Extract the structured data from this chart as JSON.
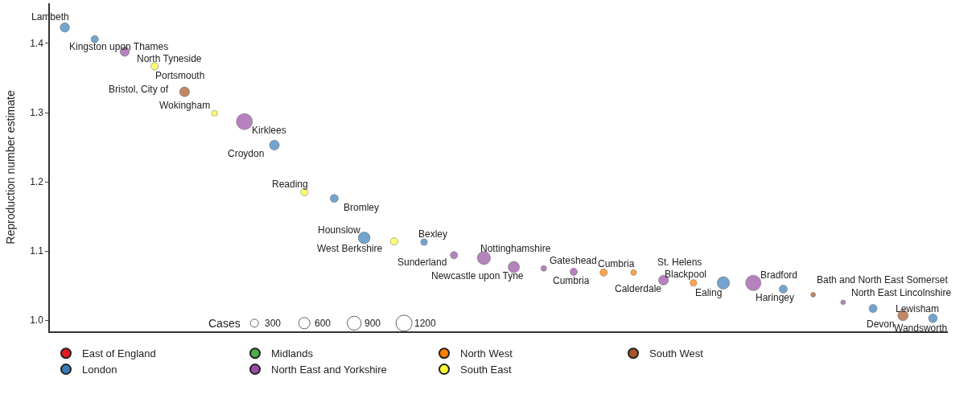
{
  "chart_data": {
    "type": "bubble",
    "ylabel": "Reproduction number estimate",
    "categories": [
      null,
      null,
      null,
      null,
      null,
      null,
      null,
      null,
      null,
      null,
      null,
      null,
      null,
      null,
      null,
      null,
      null,
      null,
      null,
      null,
      null,
      null,
      null,
      null,
      null,
      null,
      null,
      null,
      null,
      null
    ],
    "series": [
      {
        "name": "East of England",
        "color": "#e41a1c",
        "values": [
          null,
          null,
          null,
          null,
          null,
          null,
          null,
          null,
          null,
          null,
          null,
          null,
          null,
          null,
          null,
          null,
          null,
          null,
          null,
          null,
          null,
          null,
          null,
          null,
          null,
          null,
          null,
          null,
          null,
          null
        ],
        "sizes": [
          null,
          null,
          null,
          null,
          null,
          null,
          null,
          null,
          null,
          null,
          null,
          null,
          null,
          null,
          null,
          null,
          null,
          null,
          null,
          null,
          null,
          null,
          null,
          null,
          null,
          null,
          null,
          null,
          null,
          null
        ]
      },
      {
        "name": "Midlands",
        "color": "#4daf4a",
        "values": [
          null,
          null,
          null,
          null,
          null,
          null,
          null,
          null,
          null,
          null,
          null,
          null,
          null,
          null,
          null,
          null,
          null,
          null,
          null,
          null,
          null,
          null,
          null,
          null,
          null,
          null,
          null,
          null,
          null,
          null
        ],
        "sizes": [
          null,
          null,
          null,
          null,
          null,
          null,
          null,
          null,
          null,
          null,
          null,
          null,
          null,
          null,
          null,
          null,
          null,
          null,
          null,
          null,
          null,
          null,
          null,
          null,
          null,
          null,
          null,
          null,
          null,
          null
        ]
      },
      {
        "name": "North West",
        "color": "#ff7f00",
        "values": [
          null,
          null,
          null,
          null,
          null,
          null,
          null,
          null,
          null,
          null,
          null,
          null,
          null,
          null,
          null,
          null,
          null,
          null,
          1.069,
          1.069,
          null,
          1.054,
          null,
          null,
          null,
          null,
          null,
          null,
          null,
          null
        ],
        "sizes": [
          null,
          null,
          null,
          null,
          null,
          null,
          null,
          null,
          null,
          null,
          null,
          null,
          null,
          null,
          null,
          null,
          null,
          null,
          250,
          150,
          null,
          200,
          null,
          null,
          null,
          null,
          null,
          null,
          null,
          null
        ]
      },
      {
        "name": "South West",
        "color": "#a65628",
        "values": [
          null,
          null,
          null,
          null,
          1.33,
          null,
          null,
          null,
          null,
          null,
          null,
          null,
          null,
          null,
          null,
          null,
          null,
          null,
          null,
          null,
          null,
          null,
          null,
          null,
          null,
          1.037,
          null,
          null,
          1.007,
          null
        ],
        "sizes": [
          null,
          null,
          null,
          null,
          450,
          null,
          null,
          null,
          null,
          null,
          null,
          null,
          null,
          null,
          null,
          null,
          null,
          null,
          null,
          null,
          null,
          null,
          null,
          null,
          null,
          100,
          null,
          null,
          500,
          null
        ]
      },
      {
        "name": "London",
        "color": "#377eb8",
        "values": [
          1.423,
          1.406,
          null,
          null,
          null,
          null,
          null,
          1.253,
          null,
          1.176,
          1.119,
          null,
          1.113,
          null,
          null,
          null,
          null,
          null,
          null,
          null,
          null,
          null,
          1.054,
          null,
          1.045,
          null,
          null,
          1.017,
          null,
          1.003
        ],
        "sizes": [
          400,
          250,
          null,
          null,
          null,
          null,
          null,
          450,
          null,
          300,
          650,
          null,
          200,
          null,
          null,
          null,
          null,
          null,
          null,
          null,
          null,
          null,
          700,
          null,
          300,
          null,
          null,
          300,
          null,
          350
        ]
      },
      {
        "name": "North East and Yorkshire",
        "color": "#984ea3",
        "values": [
          null,
          null,
          1.388,
          null,
          null,
          null,
          1.287,
          null,
          null,
          null,
          null,
          null,
          null,
          1.094,
          1.09,
          1.077,
          1.075,
          1.07,
          null,
          null,
          1.058,
          null,
          null,
          1.054,
          null,
          null,
          1.026,
          null,
          null,
          null
        ],
        "sizes": [
          null,
          null,
          400,
          null,
          null,
          null,
          1200,
          null,
          null,
          null,
          null,
          null,
          null,
          250,
          800,
          600,
          150,
          250,
          null,
          null,
          450,
          null,
          null,
          1100,
          null,
          null,
          100,
          null,
          null,
          null
        ]
      },
      {
        "name": "South East",
        "color": "#ffff33",
        "values": [
          null,
          null,
          null,
          1.367,
          null,
          1.299,
          null,
          null,
          1.185,
          null,
          null,
          1.114,
          null,
          null,
          null,
          null,
          null,
          null,
          null,
          null,
          null,
          null,
          null,
          null,
          null,
          null,
          null,
          null,
          null,
          null
        ],
        "sizes": [
          null,
          null,
          null,
          250,
          null,
          150,
          null,
          null,
          250,
          null,
          null,
          250,
          null,
          null,
          null,
          null,
          null,
          null,
          null,
          null,
          null,
          null,
          null,
          null,
          null,
          null,
          null,
          null,
          null,
          null
        ]
      }
    ],
    "size_legend": [
      300,
      600,
      900,
      1200
    ],
    "annotations": [
      "Lambeth",
      "Kingston upon Thames",
      "North Tyneside",
      "Portsmouth",
      "Bristol, City of",
      "Wokingham",
      "Kirklees",
      "Croydon",
      "Reading",
      "Bromley",
      "Hounslow",
      "West Berkshire",
      "Bexley",
      "Sunderland",
      "Nottinghamshire",
      "Newcastle upon Tyne",
      "Gateshead",
      "Cumbria",
      "Cumbria",
      "St. Helens",
      "Calderdale",
      "Blackpool",
      "Ealing",
      "Bradford",
      "Haringey",
      "Bath and North East Somerset",
      "North East Lincolnshire",
      "Lewisham",
      "Devon",
      "Wandsworth",
      "Cases"
    ],
    "ylim": [
      0.984,
      1.458
    ],
    "yticks": [
      {
        "value": 1.0,
        "label": "1.0"
      },
      1.1,
      1.2,
      1.3,
      1.4
    ],
    "tick_labels": "y",
    "legend": "bottom"
  }
}
